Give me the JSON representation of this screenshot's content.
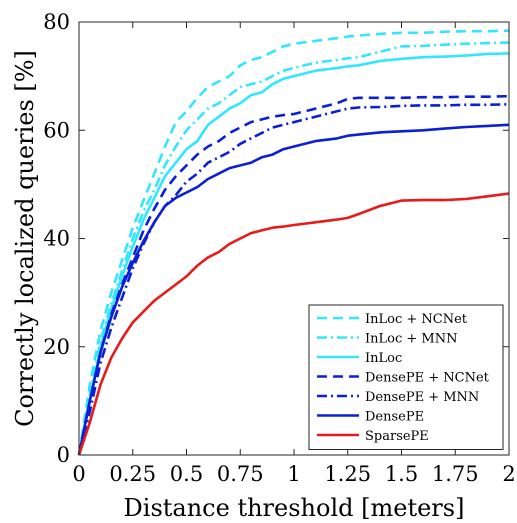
{
  "chart_data": {
    "type": "line",
    "xlabel": "Distance threshold [meters]",
    "ylabel": "Correctly localized queries [%]",
    "xlim": [
      0,
      2
    ],
    "ylim": [
      0,
      80
    ],
    "xticks": [
      0,
      0.25,
      0.5,
      0.75,
      1,
      1.25,
      1.5,
      1.75,
      2
    ],
    "xtick_labels": [
      "0",
      "0.25",
      "0.5",
      "0.75",
      "1",
      "1.25",
      "1.5",
      "1.75",
      "2"
    ],
    "yticks": [
      0,
      20,
      40,
      60,
      80
    ],
    "ytick_labels": [
      "0",
      "20",
      "40",
      "60",
      "80"
    ],
    "grid": false,
    "legend_position": "bottom-right",
    "series": [
      {
        "name": "InLoc + NCNet",
        "color": "#33e6ff",
        "style": "dashed",
        "x": [
          0,
          0.05,
          0.1,
          0.15,
          0.2,
          0.25,
          0.3,
          0.35,
          0.4,
          0.45,
          0.5,
          0.55,
          0.6,
          0.65,
          0.7,
          0.75,
          0.8,
          0.85,
          0.9,
          0.95,
          1.0,
          1.1,
          1.2,
          1.25,
          1.3,
          1.4,
          1.5,
          1.6,
          1.7,
          1.8,
          1.9,
          2.0
        ],
        "y": [
          0,
          13,
          23,
          30,
          36,
          42,
          47,
          52,
          57,
          61.5,
          63.5,
          66,
          68,
          69,
          70,
          72,
          73,
          73.5,
          74.5,
          75.5,
          76,
          76.5,
          77,
          77.3,
          77.5,
          77.8,
          78,
          78,
          78.2,
          78.3,
          78.3,
          78.4
        ]
      },
      {
        "name": "InLoc + MNN",
        "color": "#33e6ff",
        "style": "dashdot",
        "x": [
          0,
          0.05,
          0.1,
          0.15,
          0.2,
          0.25,
          0.3,
          0.35,
          0.4,
          0.45,
          0.5,
          0.55,
          0.6,
          0.65,
          0.7,
          0.75,
          0.8,
          0.85,
          0.9,
          0.95,
          1.0,
          1.1,
          1.2,
          1.25,
          1.3,
          1.4,
          1.5,
          1.6,
          1.7,
          1.8,
          1.9,
          2.0
        ],
        "y": [
          0,
          11,
          21,
          28,
          34,
          40,
          45,
          49,
          53.5,
          57,
          60,
          62,
          64,
          65,
          66.5,
          68,
          68.5,
          69,
          70,
          71,
          71.5,
          72.5,
          73,
          73.3,
          73.5,
          74.5,
          75.5,
          75.6,
          75.8,
          76,
          76.1,
          76.2
        ]
      },
      {
        "name": "InLoc",
        "color": "#33e6ff",
        "style": "solid",
        "x": [
          0,
          0.05,
          0.1,
          0.15,
          0.2,
          0.25,
          0.3,
          0.35,
          0.4,
          0.45,
          0.5,
          0.55,
          0.6,
          0.65,
          0.7,
          0.75,
          0.8,
          0.85,
          0.9,
          0.95,
          1.0,
          1.1,
          1.2,
          1.25,
          1.3,
          1.4,
          1.5,
          1.6,
          1.7,
          1.8,
          1.9,
          2.0
        ],
        "y": [
          0,
          10,
          20,
          27,
          33,
          38.5,
          43.5,
          47.5,
          51.5,
          54,
          56.5,
          58,
          61,
          62.5,
          64,
          65,
          66.5,
          67,
          68.5,
          69.5,
          70,
          71,
          71.5,
          71.8,
          72,
          72.8,
          73.2,
          73.5,
          73.6,
          73.8,
          74.1,
          74.2
        ]
      },
      {
        "name": "DensePE + NCNet",
        "color": "#0a1fd6",
        "style": "dashed",
        "x": [
          0,
          0.05,
          0.1,
          0.15,
          0.2,
          0.25,
          0.3,
          0.35,
          0.4,
          0.45,
          0.5,
          0.55,
          0.6,
          0.65,
          0.7,
          0.75,
          0.8,
          0.85,
          0.9,
          0.95,
          1.0,
          1.1,
          1.2,
          1.25,
          1.3,
          1.4,
          1.5,
          1.6,
          1.7,
          1.8,
          1.9,
          2.0
        ],
        "y": [
          0,
          10,
          19,
          26,
          31.5,
          36.5,
          41.5,
          45.5,
          49,
          51.5,
          53.5,
          55.5,
          57,
          58,
          59.5,
          60.5,
          61.5,
          62,
          62.5,
          62.8,
          63,
          64,
          65,
          65.8,
          66,
          66,
          66,
          66.1,
          66.1,
          66.2,
          66.2,
          66.3
        ]
      },
      {
        "name": "DensePE + MNN",
        "color": "#0a1fd6",
        "style": "dashdot",
        "x": [
          0,
          0.05,
          0.1,
          0.15,
          0.2,
          0.25,
          0.3,
          0.35,
          0.4,
          0.45,
          0.5,
          0.55,
          0.6,
          0.65,
          0.7,
          0.75,
          0.8,
          0.85,
          0.9,
          0.95,
          1.0,
          1.1,
          1.2,
          1.25,
          1.3,
          1.4,
          1.5,
          1.6,
          1.7,
          1.8,
          1.9,
          2.0
        ],
        "y": [
          0,
          8,
          17,
          23.5,
          29,
          34.5,
          39,
          43,
          46,
          48,
          50.5,
          52,
          54,
          55,
          56,
          57.5,
          58.5,
          59.5,
          60.5,
          61,
          61.5,
          62.5,
          63.5,
          64,
          64.2,
          64.3,
          64.5,
          64.6,
          64.6,
          64.7,
          64.7,
          64.8
        ]
      },
      {
        "name": "DensePE",
        "color": "#0a1fd6",
        "style": "solid",
        "x": [
          0,
          0.05,
          0.1,
          0.15,
          0.2,
          0.25,
          0.3,
          0.35,
          0.4,
          0.45,
          0.5,
          0.55,
          0.6,
          0.65,
          0.7,
          0.75,
          0.8,
          0.85,
          0.9,
          0.95,
          1.0,
          1.1,
          1.2,
          1.25,
          1.3,
          1.4,
          1.5,
          1.6,
          1.7,
          1.8,
          1.9,
          2.0
        ],
        "y": [
          0,
          10,
          19,
          25.5,
          31,
          35.5,
          39.5,
          43,
          46,
          47.5,
          48.5,
          49.5,
          51,
          52,
          53,
          53.5,
          54,
          55,
          55.5,
          56.5,
          57,
          58,
          58.5,
          59,
          59.2,
          59.6,
          59.8,
          60,
          60.3,
          60.6,
          60.8,
          61
        ]
      },
      {
        "name": "SparsePE",
        "color": "#e81b1b",
        "style": "solid",
        "x": [
          0,
          0.05,
          0.1,
          0.15,
          0.2,
          0.25,
          0.3,
          0.35,
          0.4,
          0.45,
          0.5,
          0.55,
          0.6,
          0.65,
          0.7,
          0.75,
          0.8,
          0.85,
          0.9,
          0.95,
          1.0,
          1.1,
          1.2,
          1.25,
          1.3,
          1.4,
          1.5,
          1.6,
          1.7,
          1.8,
          1.9,
          2.0
        ],
        "y": [
          0,
          6,
          13,
          18,
          21.5,
          24.5,
          26.5,
          28.5,
          30,
          31.5,
          33,
          35,
          36.5,
          37.5,
          39,
          40,
          41,
          41.5,
          42,
          42.2,
          42.5,
          43,
          43.5,
          43.8,
          44.5,
          46,
          47,
          47.1,
          47.1,
          47.3,
          47.8,
          48.3
        ]
      }
    ]
  }
}
